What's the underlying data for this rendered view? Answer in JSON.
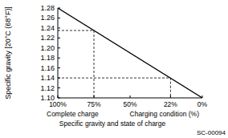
{
  "chart_data": {
    "type": "line",
    "title": "Specific gravity and state of charge",
    "xlabel": "Charging condition (%)",
    "ylabel": "Specific gravity [20°C (68°F)]",
    "annotations": [
      "Complete charge",
      "SC-00094"
    ],
    "x": [
      100,
      0
    ],
    "series": [
      {
        "values": [
          1.28,
          1.1
        ],
        "color": "#000000",
        "line_style": "solid"
      }
    ],
    "xlim": [
      100,
      0
    ],
    "xticks": [
      {
        "value": 100,
        "label": "100%"
      },
      {
        "value": 75,
        "label": "75%"
      },
      {
        "value": 50,
        "label": "50%"
      },
      {
        "value": 22,
        "label": "22%"
      },
      {
        "value": 0,
        "label": "0%"
      }
    ],
    "ylim": [
      1.1,
      1.28
    ],
    "yticks": [
      {
        "value": 1.28,
        "label": "1.28"
      },
      {
        "value": 1.26,
        "label": "1.26"
      },
      {
        "value": 1.24,
        "label": "1.24"
      },
      {
        "value": 1.22,
        "label": "1.22"
      },
      {
        "value": 1.2,
        "label": "1.20"
      },
      {
        "value": 1.18,
        "label": "1.18"
      },
      {
        "value": 1.16,
        "label": "1.16"
      },
      {
        "value": 1.14,
        "label": "1.14"
      },
      {
        "value": 1.12,
        "label": "1.12"
      },
      {
        "value": 1.1,
        "label": "1.10"
      }
    ],
    "reference_lines": [
      {
        "x": 75,
        "y": 1.235
      },
      {
        "x": 22,
        "y": 1.14
      }
    ],
    "grid": false
  }
}
